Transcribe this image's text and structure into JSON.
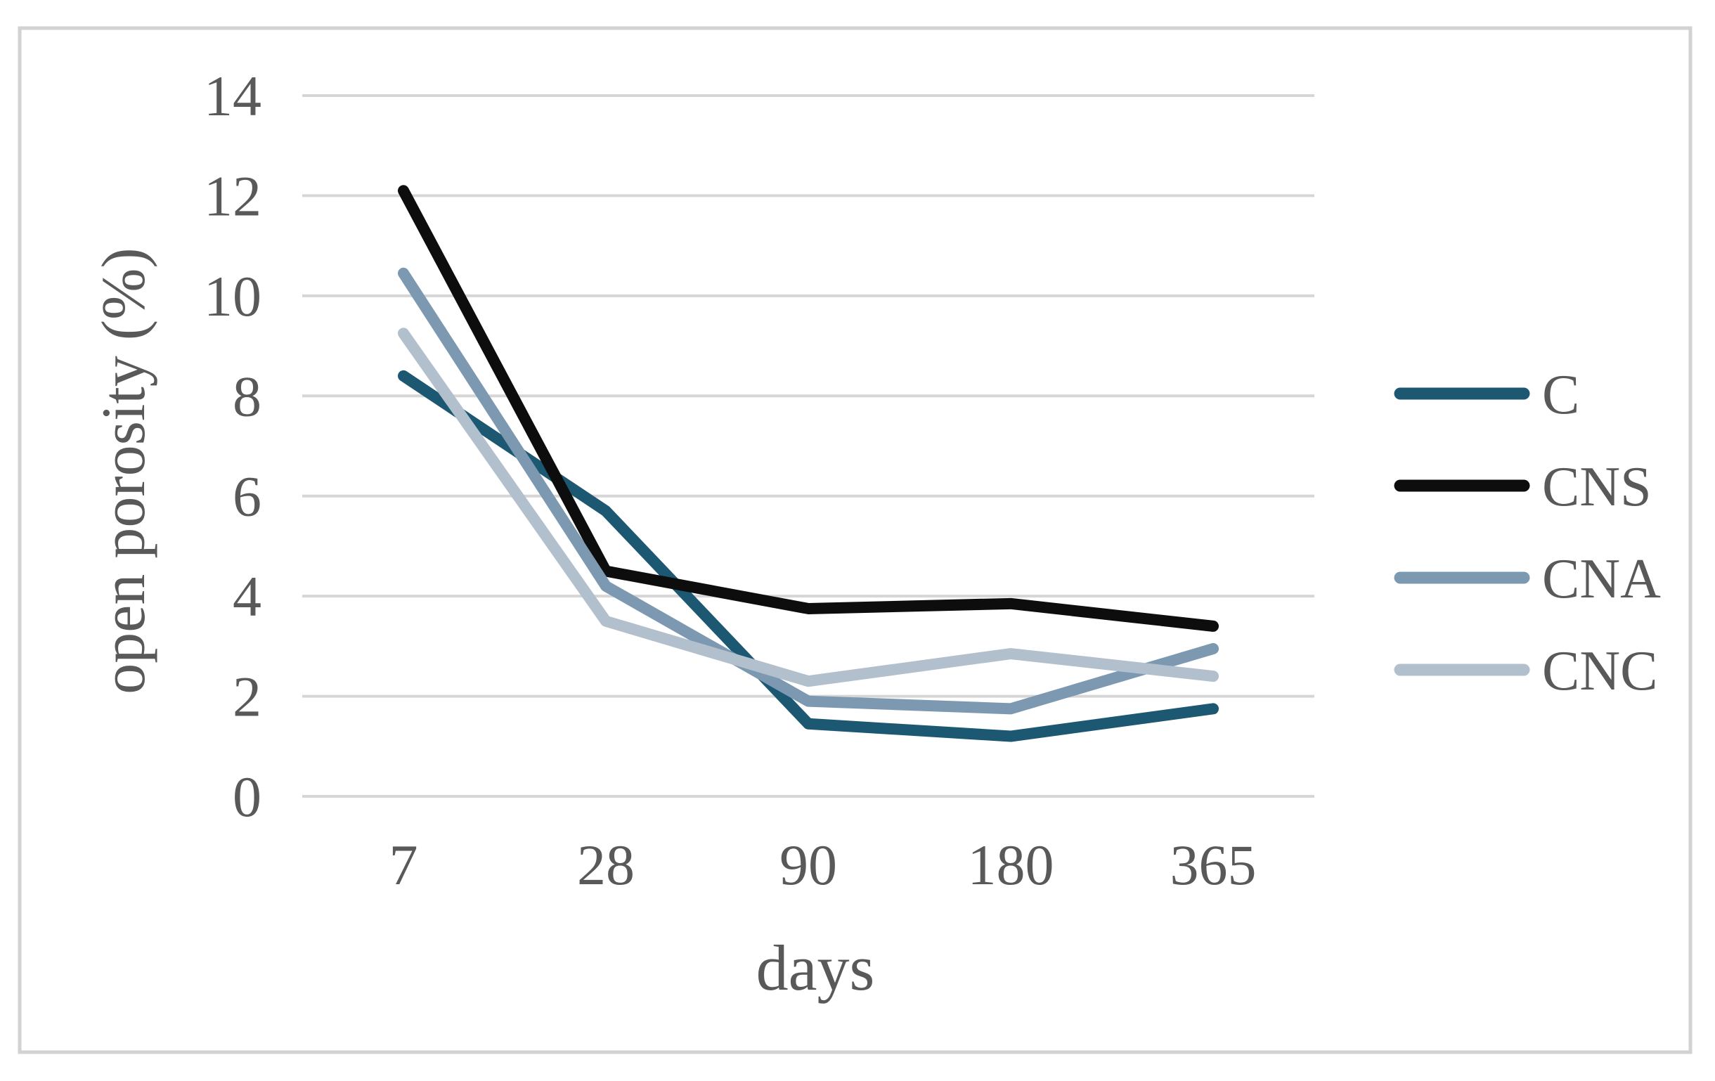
{
  "figure": {
    "background_color": "#ffffff",
    "border_color": "#d2d2d2"
  },
  "chart_data": {
    "type": "line",
    "title": "",
    "xlabel": "days",
    "ylabel": "open porosity (%)",
    "categories": [
      "7",
      "28",
      "90",
      "180",
      "365"
    ],
    "y_ticks": [
      "0",
      "2",
      "4",
      "6",
      "8",
      "10",
      "12",
      "14"
    ],
    "ylim": [
      0,
      14
    ],
    "grid": true,
    "gridline_color": "#d6d6d6",
    "axis_text_color": "#595959",
    "legend_position": "right",
    "series": [
      {
        "name": "C",
        "color": "#1d5873",
        "values": [
          8.4,
          5.7,
          1.45,
          1.2,
          1.75
        ]
      },
      {
        "name": "CNS",
        "color": "#0d0d0d",
        "values": [
          12.1,
          4.5,
          3.75,
          3.85,
          3.4
        ]
      },
      {
        "name": "CNA",
        "color": "#7d99b1",
        "values": [
          10.45,
          4.2,
          1.9,
          1.75,
          2.95
        ]
      },
      {
        "name": "CNC",
        "color": "#b2c0cd",
        "values": [
          9.25,
          3.5,
          2.3,
          2.85,
          2.4
        ]
      }
    ]
  }
}
